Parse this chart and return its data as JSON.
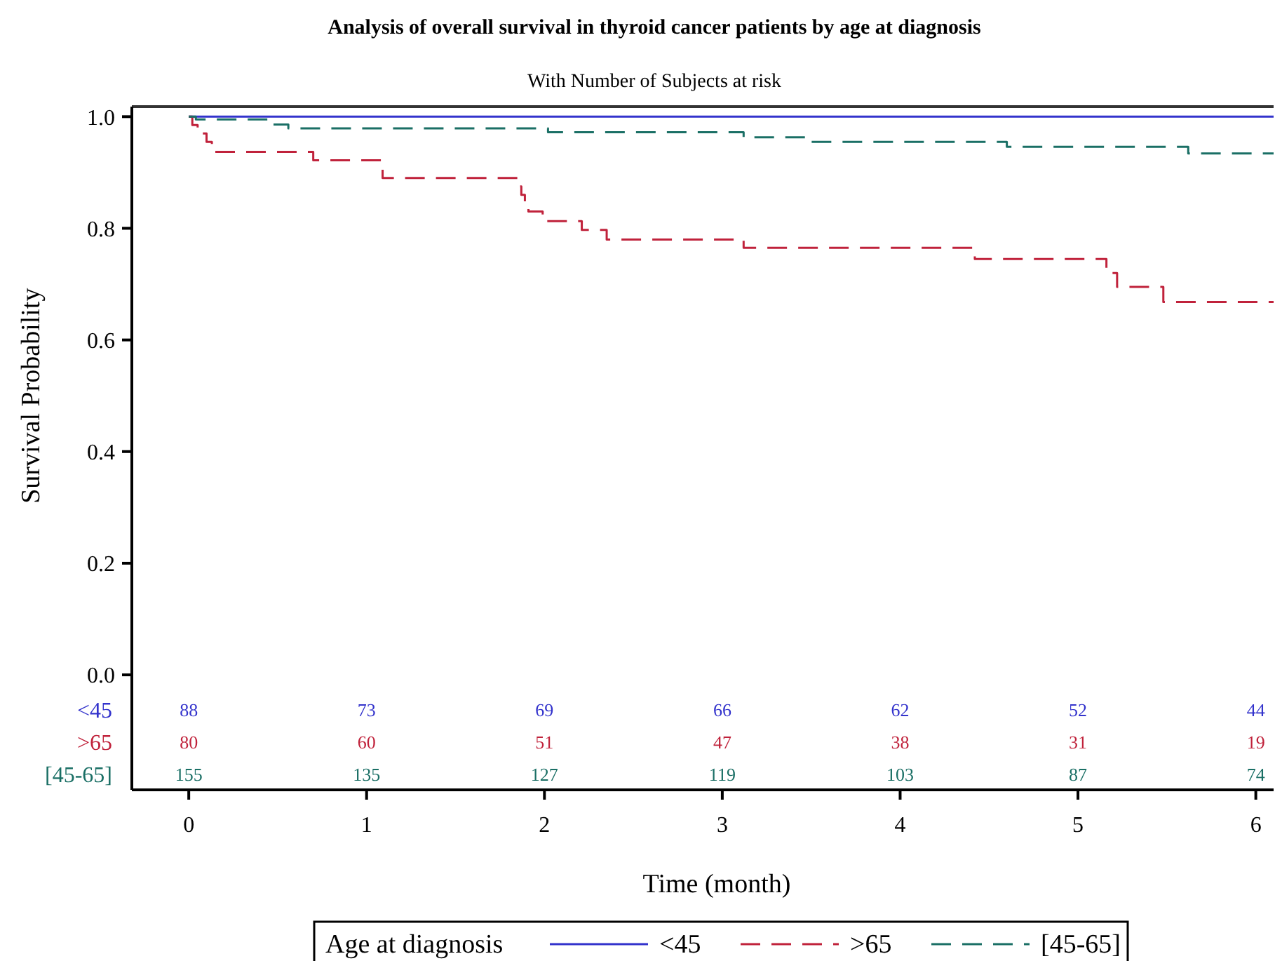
{
  "chart_data": {
    "type": "step",
    "title": "Analysis of overall survival in thyroid cancer patients by age at diagnosis",
    "subtitle": "With Number of Subjects at risk",
    "xlabel": "Time (month)",
    "ylabel": "Survival Probability",
    "legend_title": "Age at diagnosis",
    "legend": "bottom",
    "grid": false,
    "xlim": [
      -0.32,
      6.1
    ],
    "xticks": [
      0,
      1,
      2,
      3,
      4,
      5,
      6
    ],
    "ylim": [
      -0.206,
      1.018
    ],
    "yticks": [
      {
        "value": 0,
        "label": "0.0"
      },
      {
        "value": 0.2,
        "label": "0.2"
      },
      {
        "value": 0.4,
        "label": "0.4"
      },
      {
        "value": 0.6,
        "label": "0.6"
      },
      {
        "value": 0.8,
        "label": "0.8"
      },
      {
        "value": 1,
        "label": "1.0"
      }
    ],
    "series": [
      {
        "name": "<45",
        "color": "#3333cc",
        "line_style": "solid",
        "x": [
          0,
          6.1
        ],
        "values": [
          1,
          1
        ]
      },
      {
        "name": ">65",
        "color": "#c0223b",
        "line_style": "dashed",
        "x": [
          0,
          0.02,
          0.05,
          0.1,
          0.13,
          0.7,
          1.09,
          1.85,
          1.87,
          1.89,
          1.91,
          1.99,
          2.21,
          2.35,
          3.12,
          4.42,
          5.16,
          5.22,
          5.48,
          6.1
        ],
        "values": [
          1,
          0.985,
          0.97,
          0.955,
          0.937,
          0.922,
          0.89,
          0.875,
          0.86,
          0.845,
          0.83,
          0.813,
          0.797,
          0.78,
          0.765,
          0.745,
          0.72,
          0.695,
          0.668,
          0.668
        ]
      },
      {
        "name": "[45-65]",
        "color": "#1a6f65",
        "line_style": "dashed",
        "x": [
          0,
          0.04,
          0.46,
          0.56,
          2.02,
          3.12,
          3.5,
          4.6,
          5.62,
          6.1
        ],
        "values": [
          1,
          0.995,
          0.986,
          0.979,
          0.972,
          0.963,
          0.955,
          0.946,
          0.934,
          0.934
        ]
      }
    ],
    "annotations": [
      "88",
      "73",
      "69",
      "66",
      "62",
      "52",
      "44",
      "80",
      "60",
      "51",
      "47",
      "38",
      "31",
      "19",
      "155",
      "135",
      "127",
      "119",
      "103",
      "87",
      "74"
    ]
  }
}
